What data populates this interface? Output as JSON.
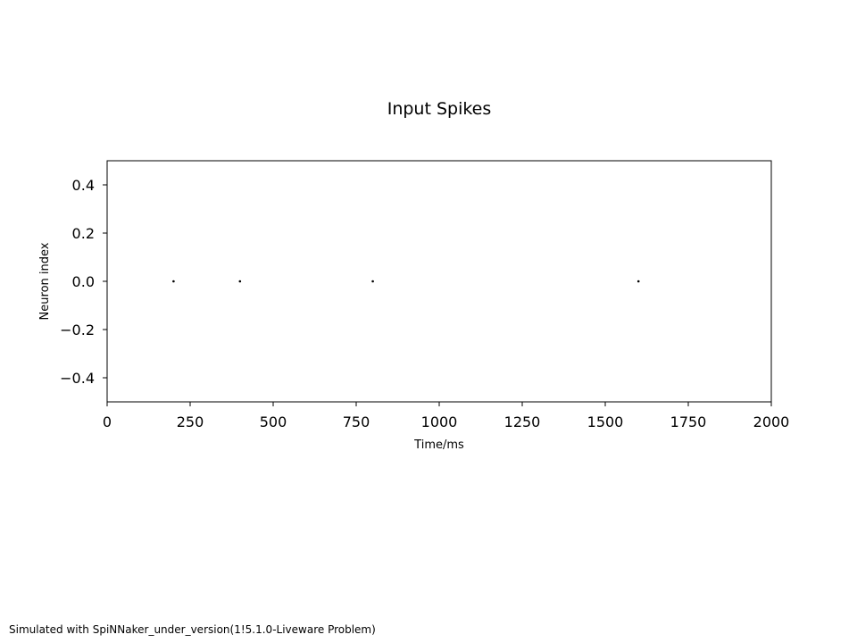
{
  "figure": {
    "footer": "Simulated with SpiNNaker_under_version(1!5.1.0-Liveware Problem)"
  },
  "chart_data": {
    "type": "scatter",
    "title": "Input Spikes",
    "xlabel": "Time/ms",
    "ylabel": "Neuron index",
    "xlim": [
      0,
      2000
    ],
    "ylim": [
      -0.5,
      0.5
    ],
    "xticks": [
      0,
      250,
      500,
      750,
      1000,
      1250,
      1500,
      1750,
      2000
    ],
    "xtick_labels": [
      "0",
      "250",
      "500",
      "750",
      "1000",
      "1250",
      "1500",
      "1750",
      "2000"
    ],
    "yticks": [
      0.4,
      0.2,
      0.0,
      -0.2,
      -0.4
    ],
    "ytick_labels": [
      "0.4",
      "0.2",
      "0.0",
      "−0.2",
      "−0.4"
    ],
    "grid": false,
    "series": [
      {
        "points": [
          {
            "x": 200,
            "y": 0
          },
          {
            "x": 400,
            "y": 0
          },
          {
            "x": 800,
            "y": 0
          },
          {
            "x": 1600,
            "y": 0
          }
        ]
      }
    ],
    "colors": {
      "marker": "#000000",
      "axes": "#000000",
      "text": "#000000"
    }
  }
}
